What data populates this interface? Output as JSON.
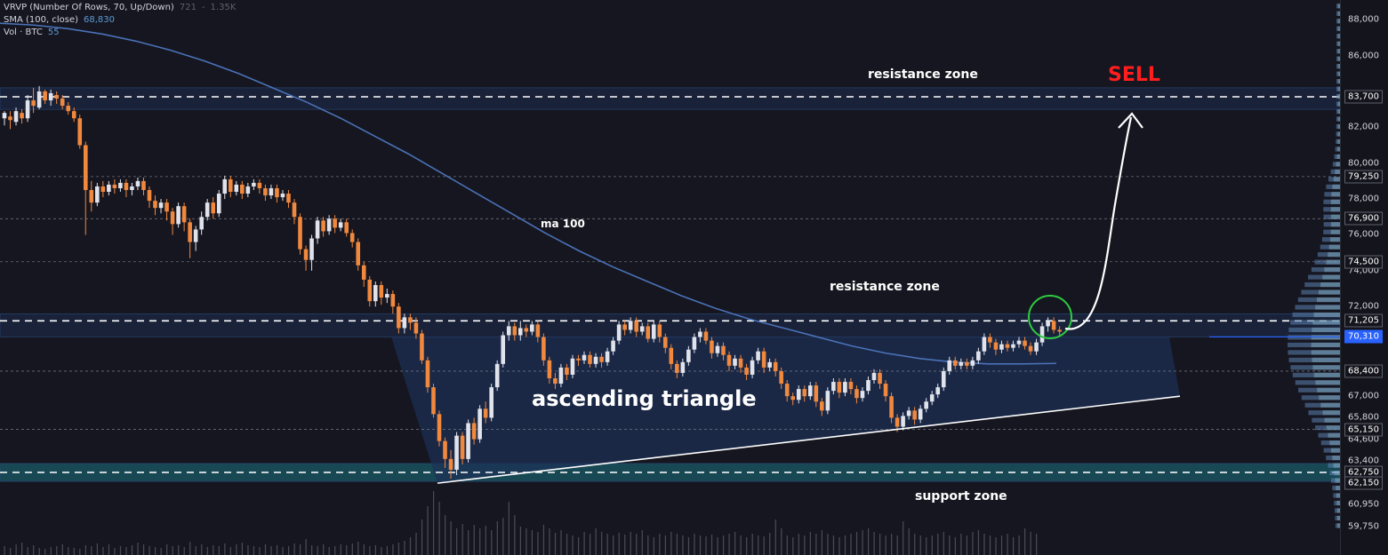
{
  "legend": {
    "vrvp": {
      "label": "VRVP (Number Of Rows, 70, Up/Down)",
      "v1": "721",
      "v2": "-",
      "v3": "1.35K"
    },
    "sma": {
      "label": "SMA (100, close)",
      "value": "68,830"
    },
    "vol": {
      "label": "Vol · BTC",
      "value": "55"
    }
  },
  "annotations": {
    "resistance_top": "resistance zone",
    "resistance_mid": "resistance zone",
    "support": "support zone",
    "sell": "SELL",
    "ma": "ma 100",
    "pattern": "ascending triangle"
  },
  "colors": {
    "background": "#161620",
    "up_candle": "#e0e3eb",
    "down_candle": "#f0883e",
    "ma_line": "#4a72b8",
    "zone_fill": "#1c3157",
    "support_fill": "#1a5a66",
    "sell": "#ff1e1e",
    "circle": "#2ecc40"
  },
  "chart_data": {
    "type": "candlestick",
    "y_axis": {
      "ticks": [
        88000,
        86000,
        82000,
        80000,
        78000,
        76000,
        74000,
        72000,
        67000,
        65800,
        64600,
        63400,
        60950,
        59750
      ],
      "tick_labels": [
        "88,000",
        "86,000",
        "82,000",
        "80,000",
        "78,000",
        "76,000",
        "74,000",
        "72,000",
        "67,000",
        "65,800",
        "64,600",
        "63,400",
        "60,950",
        "59,750"
      ],
      "highlighted_levels": [
        83700,
        79250,
        76900,
        74500,
        71205,
        70310,
        68400,
        65150,
        62750,
        62150
      ],
      "highlighted_labels": [
        "83,700",
        "79,250",
        "76,900",
        "74,500",
        "71,205",
        "70,310",
        "68,400",
        "65,150",
        "62,750",
        "62,150"
      ],
      "current_price": 70310
    },
    "zones": [
      {
        "name": "resistance",
        "from": 83000,
        "to": 84200
      },
      {
        "name": "resistance",
        "from": 70310,
        "to": 71600
      },
      {
        "name": "support",
        "from": 62250,
        "to": 63250
      }
    ],
    "dashed_levels": [
      83700,
      71205,
      62750
    ],
    "dotted_levels": [
      79250,
      76900,
      74500,
      68400,
      65150
    ],
    "triangle": {
      "resistance": 70310,
      "support_start": 62150,
      "support_end": 67000
    },
    "candles": [
      [
        82500,
        82800,
        82100,
        82900
      ],
      [
        82600,
        82400,
        81900,
        82900
      ],
      [
        82300,
        82900,
        82100,
        83100
      ],
      [
        82800,
        82500,
        82200,
        83000
      ],
      [
        82500,
        83500,
        82300,
        83800
      ],
      [
        83500,
        83200,
        82800,
        84200
      ],
      [
        83100,
        84000,
        83000,
        84300
      ],
      [
        84000,
        83500,
        83300,
        84100
      ],
      [
        83500,
        83900,
        83200,
        84100
      ],
      [
        83800,
        83600,
        83300,
        84000
      ],
      [
        83600,
        83200,
        83000,
        83800
      ],
      [
        83200,
        82900,
        82700,
        83400
      ],
      [
        82900,
        82500,
        82300,
        83100
      ],
      [
        82500,
        81000,
        80800,
        82700
      ],
      [
        81000,
        78500,
        76000,
        81200
      ],
      [
        78500,
        77800,
        77300,
        79000
      ],
      [
        77800,
        78700,
        77600,
        78900
      ],
      [
        78700,
        78400,
        78100,
        79000
      ],
      [
        78400,
        78800,
        78200,
        79000
      ],
      [
        78800,
        78600,
        78300,
        79100
      ],
      [
        78600,
        78900,
        78400,
        79100
      ],
      [
        78900,
        78500,
        78100,
        79100
      ],
      [
        78500,
        78700,
        78200,
        78900
      ],
      [
        78700,
        79000,
        78500,
        79200
      ],
      [
        79000,
        78500,
        78200,
        79200
      ],
      [
        78500,
        77900,
        77500,
        78700
      ],
      [
        77900,
        77500,
        77100,
        78200
      ],
      [
        77500,
        77800,
        77200,
        78000
      ],
      [
        77800,
        77300,
        76800,
        78000
      ],
      [
        77300,
        76600,
        76000,
        77500
      ],
      [
        76600,
        77600,
        76400,
        77800
      ],
      [
        77600,
        76700,
        76200,
        77800
      ],
      [
        76700,
        75600,
        74700,
        76900
      ],
      [
        75600,
        76300,
        75100,
        76500
      ],
      [
        76300,
        77000,
        76000,
        77300
      ],
      [
        77000,
        77800,
        76800,
        78000
      ],
      [
        77800,
        77200,
        76900,
        78100
      ],
      [
        77200,
        78300,
        77000,
        78500
      ],
      [
        78300,
        79100,
        78000,
        79300
      ],
      [
        79100,
        78400,
        78100,
        79300
      ],
      [
        78400,
        78800,
        78200,
        79000
      ],
      [
        78800,
        78300,
        78000,
        79000
      ],
      [
        78300,
        78700,
        78100,
        78900
      ],
      [
        78700,
        78900,
        78500,
        79100
      ],
      [
        78900,
        78600,
        78300,
        79100
      ],
      [
        78600,
        78200,
        77900,
        78800
      ],
      [
        78200,
        78600,
        78000,
        78800
      ],
      [
        78600,
        78100,
        77800,
        78800
      ],
      [
        78100,
        78300,
        77900,
        78500
      ],
      [
        78300,
        77800,
        77500,
        78500
      ],
      [
        77800,
        77000,
        76600,
        78000
      ],
      [
        77000,
        75200,
        74900,
        77200
      ],
      [
        75200,
        74600,
        74000,
        75400
      ],
      [
        74600,
        75800,
        74000,
        76000
      ],
      [
        75800,
        76800,
        75500,
        77000
      ],
      [
        76800,
        76200,
        75900,
        77000
      ],
      [
        76200,
        76900,
        76000,
        77100
      ],
      [
        76900,
        76400,
        76100,
        77100
      ],
      [
        76400,
        76700,
        76200,
        76900
      ],
      [
        76700,
        76100,
        75900,
        76900
      ],
      [
        76100,
        75600,
        75300,
        76300
      ],
      [
        75600,
        74300,
        74000,
        75800
      ],
      [
        74300,
        73500,
        73100,
        74500
      ],
      [
        73500,
        72300,
        72000,
        73700
      ],
      [
        72300,
        73200,
        72000,
        73400
      ],
      [
        73200,
        72500,
        72100,
        73400
      ],
      [
        72500,
        72700,
        72200,
        73000
      ],
      [
        72700,
        72000,
        71600,
        72900
      ],
      [
        72000,
        70800,
        70500,
        72200
      ],
      [
        70800,
        71400,
        70500,
        71600
      ],
      [
        71400,
        71100,
        70700,
        71600
      ],
      [
        71100,
        70500,
        70200,
        71400
      ],
      [
        70500,
        69000,
        68800,
        70700
      ],
      [
        69000,
        67500,
        67200,
        69200
      ],
      [
        67500,
        66000,
        65800,
        67700
      ],
      [
        66000,
        64500,
        64200,
        66200
      ],
      [
        64500,
        63500,
        63000,
        64700
      ],
      [
        63500,
        62900,
        62400,
        64000
      ],
      [
        62900,
        64800,
        62600,
        65000
      ],
      [
        64800,
        63500,
        63200,
        65000
      ],
      [
        63500,
        65500,
        63300,
        65700
      ],
      [
        65500,
        64600,
        64300,
        65800
      ],
      [
        64600,
        66300,
        64400,
        66500
      ],
      [
        66300,
        65800,
        65500,
        66700
      ],
      [
        65800,
        67500,
        65600,
        67700
      ],
      [
        67500,
        68800,
        67300,
        69000
      ],
      [
        68800,
        70400,
        68600,
        70600
      ],
      [
        70400,
        70900,
        70100,
        71200
      ],
      [
        70900,
        70400,
        70100,
        71100
      ],
      [
        70400,
        70800,
        70100,
        71200
      ],
      [
        70800,
        70600,
        70300,
        71000
      ],
      [
        70600,
        71000,
        70400,
        71200
      ],
      [
        71000,
        70300,
        70000,
        71200
      ],
      [
        70300,
        69000,
        68700,
        70500
      ],
      [
        69000,
        68000,
        67700,
        69200
      ],
      [
        68000,
        67700,
        67400,
        68300
      ],
      [
        67700,
        68600,
        67500,
        68800
      ],
      [
        68600,
        68200,
        67900,
        68800
      ],
      [
        68200,
        69100,
        68000,
        69300
      ],
      [
        69100,
        69000,
        68700,
        69300
      ],
      [
        69000,
        69300,
        68800,
        69500
      ],
      [
        69300,
        68800,
        68600,
        69500
      ],
      [
        68800,
        69200,
        68600,
        69400
      ],
      [
        69200,
        68900,
        68600,
        69400
      ],
      [
        68900,
        69500,
        68700,
        69700
      ],
      [
        69500,
        70100,
        69300,
        70300
      ],
      [
        70100,
        71000,
        69900,
        71200
      ],
      [
        71000,
        70700,
        70400,
        71200
      ],
      [
        70700,
        71200,
        70500,
        71400
      ],
      [
        71200,
        70600,
        70300,
        71400
      ],
      [
        70600,
        70900,
        70400,
        71100
      ],
      [
        70900,
        70200,
        70000,
        71100
      ],
      [
        70200,
        71000,
        70000,
        71200
      ],
      [
        71000,
        70300,
        70000,
        71200
      ],
      [
        70300,
        69700,
        69400,
        70500
      ],
      [
        69700,
        68800,
        68500,
        69900
      ],
      [
        68800,
        68300,
        68000,
        69000
      ],
      [
        68300,
        68900,
        68100,
        69100
      ],
      [
        68900,
        69600,
        68700,
        69800
      ],
      [
        69600,
        70300,
        69400,
        70500
      ],
      [
        70300,
        70600,
        70000,
        70800
      ],
      [
        70600,
        70100,
        69900,
        70800
      ],
      [
        70100,
        69400,
        69100,
        70300
      ],
      [
        69400,
        69800,
        69200,
        70000
      ],
      [
        69800,
        69300,
        69000,
        70000
      ],
      [
        69300,
        68700,
        68400,
        69500
      ],
      [
        68700,
        69100,
        68500,
        69300
      ],
      [
        69100,
        68600,
        68300,
        69300
      ],
      [
        68600,
        68200,
        67900,
        68800
      ],
      [
        68200,
        69000,
        68000,
        69200
      ],
      [
        69000,
        69500,
        68800,
        69700
      ],
      [
        69500,
        68600,
        68300,
        69700
      ],
      [
        68600,
        68900,
        68400,
        69100
      ],
      [
        68900,
        68400,
        68100,
        69100
      ],
      [
        68400,
        67700,
        67400,
        68600
      ],
      [
        67700,
        67000,
        66700,
        67900
      ],
      [
        67000,
        66800,
        66500,
        67200
      ],
      [
        66800,
        67400,
        66600,
        67600
      ],
      [
        67400,
        67000,
        66700,
        67600
      ],
      [
        67000,
        67600,
        66800,
        67800
      ],
      [
        67600,
        66700,
        66400,
        67800
      ],
      [
        66700,
        66200,
        65900,
        66900
      ],
      [
        66200,
        67300,
        66000,
        67500
      ],
      [
        67300,
        67800,
        67100,
        68000
      ],
      [
        67800,
        67200,
        66900,
        68000
      ],
      [
        67200,
        67800,
        67000,
        68000
      ],
      [
        67800,
        67400,
        67100,
        68000
      ],
      [
        67400,
        66900,
        66600,
        67600
      ],
      [
        66900,
        67300,
        66700,
        67500
      ],
      [
        67300,
        67900,
        67100,
        68100
      ],
      [
        67900,
        68300,
        67700,
        68500
      ],
      [
        68300,
        67700,
        67400,
        68500
      ],
      [
        67700,
        67000,
        66700,
        67900
      ],
      [
        67000,
        65800,
        65500,
        67200
      ],
      [
        65800,
        65300,
        65000,
        66000
      ],
      [
        65300,
        65900,
        65100,
        66100
      ],
      [
        65900,
        66200,
        65700,
        66400
      ],
      [
        66200,
        65700,
        65400,
        66400
      ],
      [
        65700,
        66300,
        65500,
        66500
      ],
      [
        66300,
        66700,
        66100,
        66900
      ],
      [
        66700,
        67100,
        66500,
        67300
      ],
      [
        67100,
        67500,
        66900,
        67700
      ],
      [
        67500,
        68400,
        67300,
        68600
      ],
      [
        68400,
        69000,
        68200,
        69200
      ],
      [
        69000,
        68700,
        68500,
        69200
      ],
      [
        68700,
        68900,
        68500,
        69100
      ],
      [
        68900,
        68700,
        68500,
        69100
      ],
      [
        68700,
        69000,
        68500,
        69200
      ],
      [
        69000,
        69500,
        68800,
        69700
      ],
      [
        69500,
        70300,
        69300,
        70500
      ],
      [
        70300,
        70000,
        69700,
        70500
      ],
      [
        70000,
        69600,
        69300,
        70200
      ],
      [
        69600,
        69900,
        69400,
        70100
      ],
      [
        69900,
        69700,
        69500,
        70100
      ],
      [
        69700,
        69900,
        69500,
        70100
      ],
      [
        69900,
        70100,
        69700,
        70300
      ],
      [
        70100,
        69800,
        69600,
        70300
      ],
      [
        69800,
        69500,
        69300,
        70000
      ],
      [
        69500,
        70000,
        69300,
        70200
      ],
      [
        70000,
        70900,
        69800,
        71100
      ],
      [
        70900,
        71200,
        70600,
        71400
      ],
      [
        71200,
        70700,
        70500,
        71400
      ],
      [
        70700,
        70600,
        70400,
        70900
      ]
    ],
    "ma100": [
      87800,
      87700,
      87500,
      87200,
      86800,
      86300,
      85700,
      85000,
      84200,
      83400,
      82500,
      81500,
      80500,
      79400,
      78300,
      77200,
      76100,
      75100,
      74200,
      73400,
      72600,
      71900,
      71300,
      70800,
      70300,
      69800,
      69400,
      69100,
      68900,
      68800,
      68800,
      68830
    ],
    "volume": [
      10,
      8,
      12,
      14,
      9,
      11,
      8,
      7,
      9,
      10,
      12,
      9,
      8,
      7,
      11,
      10,
      13,
      9,
      12,
      8,
      10,
      9,
      11,
      14,
      12,
      10,
      9,
      8,
      12,
      10,
      11,
      9,
      15,
      10,
      12,
      9,
      11,
      10,
      13,
      9,
      12,
      14,
      11,
      10,
      9,
      12,
      10,
      11,
      9,
      10,
      13,
      12,
      18,
      11,
      10,
      12,
      9,
      10,
      12,
      11,
      13,
      15,
      12,
      10,
      11,
      9,
      10,
      12,
      14,
      16,
      20,
      25,
      40,
      55,
      72,
      60,
      45,
      38,
      30,
      35,
      28,
      34,
      30,
      33,
      28,
      38,
      42,
      60,
      45,
      32,
      30,
      28,
      26,
      34,
      30,
      25,
      28,
      24,
      22,
      20,
      26,
      24,
      30,
      26,
      24,
      22,
      25,
      23,
      26,
      24,
      28,
      22,
      20,
      24,
      22,
      26,
      24,
      22,
      20,
      24,
      22,
      21,
      23,
      20,
      22,
      24,
      26,
      22,
      20,
      24,
      22,
      21,
      25,
      40,
      30,
      22,
      20,
      24,
      22,
      26,
      24,
      28,
      24,
      22,
      20,
      22,
      24,
      26,
      28,
      30,
      26,
      24,
      22,
      24,
      22,
      38,
      30,
      24,
      22,
      20,
      22,
      24,
      26,
      22,
      20,
      24,
      22,
      26,
      28,
      24,
      22,
      20,
      22,
      24,
      20,
      22,
      30,
      26,
      24
    ]
  }
}
